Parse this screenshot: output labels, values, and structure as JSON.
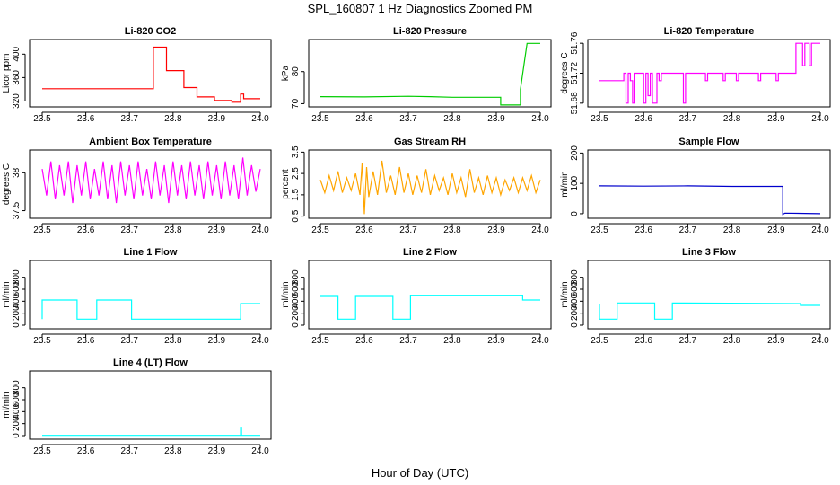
{
  "figure": {
    "title": "SPL_160807  1 Hz Diagnostics Zoomed PM",
    "xlabel": "Hour of Day (UTC)"
  },
  "chart_data": [
    {
      "type": "line",
      "title": "Li-820 CO2",
      "ylabel": "Licor ppm",
      "color": "#ff0000",
      "xlim": [
        23.5,
        24.0
      ],
      "ylim": [
        310,
        425
      ],
      "xticks": [
        "23.5",
        "23.6",
        "23.7",
        "23.8",
        "23.9",
        "24.0"
      ],
      "yticks": [
        320,
        360,
        400
      ],
      "series": [
        {
          "x": [
            23.5,
            23.755,
            23.755,
            23.785,
            23.785,
            23.825,
            23.825,
            23.855,
            23.855,
            23.895,
            23.895,
            23.935,
            23.935,
            23.955,
            23.955,
            23.962,
            23.962,
            24.0
          ],
          "y": [
            341,
            341,
            412,
            412,
            372,
            372,
            343,
            343,
            327,
            327,
            321,
            321,
            318,
            318,
            332,
            332,
            324,
            324
          ]
        }
      ]
    },
    {
      "type": "line",
      "title": "Li-820 Pressure",
      "ylabel": "kPa",
      "color": "#00cc00",
      "xlim": [
        23.5,
        24.0
      ],
      "ylim": [
        69,
        90
      ],
      "xticks": [
        "23.5",
        "23.6",
        "23.7",
        "23.8",
        "23.9",
        "24.0"
      ],
      "yticks": [
        70,
        80
      ],
      "series": [
        {
          "x": [
            23.5,
            23.6,
            23.7,
            23.75,
            23.8,
            23.855,
            23.91,
            23.91,
            23.955,
            23.955,
            23.965,
            23.97,
            24.0
          ],
          "y": [
            72.2,
            72.1,
            72.3,
            72.2,
            72.0,
            72.0,
            72.0,
            69.6,
            69.6,
            74.5,
            84.0,
            88.8,
            88.8
          ]
        }
      ]
    },
    {
      "type": "line",
      "title": "Li-820 Temperature",
      "ylabel": "degrees C",
      "color": "#ff00ff",
      "xlim": [
        23.5,
        24.0
      ],
      "ylim": [
        51.675,
        51.765
      ],
      "xticks": [
        "23.5",
        "23.6",
        "23.7",
        "23.8",
        "23.9",
        "24.0"
      ],
      "yticks": [
        51.68,
        51.72,
        51.76
      ],
      "series": [
        {
          "x": [
            23.5,
            23.555,
            23.555,
            23.56,
            23.56,
            23.565,
            23.565,
            23.57,
            23.57,
            23.575,
            23.575,
            23.58,
            23.58,
            23.6,
            23.6,
            23.605,
            23.605,
            23.61,
            23.61,
            23.615,
            23.615,
            23.62,
            23.62,
            23.63,
            23.63,
            23.635,
            23.635,
            23.64,
            23.64,
            23.69,
            23.69,
            23.695,
            23.695,
            23.74,
            23.74,
            23.745,
            23.745,
            23.78,
            23.78,
            23.785,
            23.785,
            23.81,
            23.81,
            23.815,
            23.815,
            23.86,
            23.86,
            23.865,
            23.865,
            23.9,
            23.9,
            23.905,
            23.905,
            23.945,
            23.945,
            23.96,
            23.96,
            23.965,
            23.965,
            23.975,
            23.975,
            23.98,
            23.98,
            23.99,
            23.99,
            24.0
          ],
          "y": [
            51.71,
            51.71,
            51.72,
            51.72,
            51.68,
            51.68,
            51.72,
            51.72,
            51.71,
            51.71,
            51.68,
            51.68,
            51.72,
            51.72,
            51.68,
            51.68,
            51.72,
            51.72,
            51.69,
            51.69,
            51.72,
            51.72,
            51.68,
            51.68,
            51.72,
            51.72,
            51.71,
            51.71,
            51.72,
            51.72,
            51.68,
            51.68,
            51.72,
            51.72,
            51.71,
            51.71,
            51.72,
            51.72,
            51.71,
            51.71,
            51.72,
            51.72,
            51.71,
            51.71,
            51.72,
            51.72,
            51.71,
            51.71,
            51.72,
            51.72,
            51.71,
            51.71,
            51.72,
            51.72,
            51.76,
            51.76,
            51.73,
            51.73,
            51.76,
            51.76,
            51.73,
            51.73,
            51.76,
            51.76,
            51.76,
            51.76
          ]
        }
      ]
    },
    {
      "type": "line",
      "title": "Ambient Box Temperature",
      "ylabel": "degrees C",
      "color": "#ff00ff",
      "xlim": [
        23.5,
        24.0
      ],
      "ylim": [
        37.4,
        38.3
      ],
      "xticks": [
        "23.5",
        "23.6",
        "23.7",
        "23.8",
        "23.9",
        "24.0"
      ],
      "yticks": [
        37.5,
        38.0
      ],
      "series": [
        {
          "x": [
            23.5,
            23.51,
            23.52,
            23.53,
            23.54,
            23.55,
            23.56,
            23.57,
            23.58,
            23.59,
            23.6,
            23.61,
            23.62,
            23.63,
            23.64,
            23.65,
            23.66,
            23.67,
            23.68,
            23.69,
            23.7,
            23.71,
            23.72,
            23.73,
            23.74,
            23.75,
            23.76,
            23.77,
            23.78,
            23.79,
            23.8,
            23.81,
            23.82,
            23.83,
            23.84,
            23.85,
            23.86,
            23.87,
            23.88,
            23.89,
            23.9,
            23.91,
            23.92,
            23.93,
            23.94,
            23.95,
            23.96,
            23.97,
            23.98,
            23.99,
            24.0
          ],
          "y": [
            38.05,
            37.7,
            38.15,
            37.65,
            38.1,
            37.7,
            38.15,
            37.6,
            38.1,
            37.7,
            38.15,
            37.65,
            38.05,
            37.7,
            38.15,
            37.65,
            38.1,
            37.6,
            38.15,
            37.7,
            38.1,
            37.65,
            38.15,
            37.7,
            38.05,
            37.65,
            38.15,
            37.7,
            38.1,
            37.6,
            38.15,
            37.7,
            38.1,
            37.65,
            38.15,
            37.7,
            38.1,
            37.65,
            38.15,
            37.7,
            38.1,
            37.65,
            38.15,
            37.7,
            38.1,
            37.65,
            38.2,
            37.7,
            38.1,
            37.75,
            38.05
          ]
        }
      ]
    },
    {
      "type": "line",
      "title": "Gas Stream RH",
      "ylabel": "percent",
      "color": "#ffa500",
      "xlim": [
        23.5,
        24.0
      ],
      "ylim": [
        0.4,
        3.6
      ],
      "xticks": [
        "23.5",
        "23.6",
        "23.7",
        "23.8",
        "23.9",
        "24.0"
      ],
      "yticks": [
        0.5,
        1.5,
        2.5,
        3.5
      ],
      "series": [
        {
          "x": [
            23.5,
            23.51,
            23.52,
            23.53,
            23.54,
            23.55,
            23.56,
            23.57,
            23.58,
            23.59,
            23.595,
            23.6,
            23.605,
            23.61,
            23.62,
            23.63,
            23.64,
            23.65,
            23.66,
            23.67,
            23.68,
            23.69,
            23.7,
            23.71,
            23.72,
            23.73,
            23.74,
            23.75,
            23.76,
            23.77,
            23.78,
            23.79,
            23.8,
            23.81,
            23.82,
            23.83,
            23.84,
            23.85,
            23.86,
            23.87,
            23.88,
            23.89,
            23.9,
            23.91,
            23.92,
            23.93,
            23.94,
            23.95,
            23.96,
            23.97,
            23.98,
            23.99,
            24.0
          ],
          "y": [
            2.2,
            1.6,
            2.4,
            1.7,
            2.6,
            1.6,
            2.3,
            1.7,
            2.5,
            1.5,
            3.0,
            0.6,
            2.8,
            1.4,
            2.6,
            1.5,
            3.1,
            1.6,
            2.4,
            1.5,
            2.8,
            1.6,
            2.5,
            1.5,
            2.4,
            1.6,
            2.7,
            1.5,
            2.4,
            1.7,
            2.3,
            1.5,
            2.5,
            1.6,
            2.3,
            1.4,
            2.7,
            1.6,
            2.3,
            1.5,
            2.4,
            1.6,
            2.3,
            1.5,
            2.2,
            1.7,
            2.3,
            1.6,
            2.3,
            1.7,
            2.4,
            1.6,
            2.2
          ]
        }
      ]
    },
    {
      "type": "line",
      "title": "Sample Flow",
      "ylabel": "ml/min",
      "color": "#0000cc",
      "xlim": [
        23.5,
        24.0
      ],
      "ylim": [
        -15,
        210
      ],
      "xticks": [
        "23.5",
        "23.6",
        "23.7",
        "23.8",
        "23.9",
        "24.0"
      ],
      "yticks": [
        0,
        100,
        200
      ],
      "series": [
        {
          "x": [
            23.5,
            23.6,
            23.7,
            23.8,
            23.915,
            23.915,
            23.92,
            24.0
          ],
          "y": [
            92,
            91,
            92,
            90,
            90,
            -2,
            2,
            0
          ]
        }
      ]
    },
    {
      "type": "line",
      "title": "Line 1 Flow",
      "ylabel": "ml/min",
      "color": "#00ffff",
      "xlim": [
        23.5,
        24.0
      ],
      "ylim": [
        -60,
        1080
      ],
      "xticks": [
        "23.5",
        "23.6",
        "23.7",
        "23.8",
        "23.9",
        "24.0"
      ],
      "yticks": [
        0,
        200,
        400,
        600,
        800
      ],
      "series": [
        {
          "x": [
            23.5,
            23.5,
            23.58,
            23.58,
            23.625,
            23.625,
            23.705,
            23.705,
            23.955,
            23.955,
            24.0
          ],
          "y": [
            100,
            420,
            420,
            100,
            100,
            420,
            420,
            100,
            100,
            360,
            360
          ]
        }
      ]
    },
    {
      "type": "line",
      "title": "Line 2 Flow",
      "ylabel": "ml/min",
      "color": "#00ffff",
      "xlim": [
        23.5,
        24.0
      ],
      "ylim": [
        -60,
        1080
      ],
      "xticks": [
        "23.5",
        "23.6",
        "23.7",
        "23.8",
        "23.9",
        "24.0"
      ],
      "yticks": [
        0,
        200,
        400,
        600,
        800
      ],
      "series": [
        {
          "x": [
            23.5,
            23.54,
            23.54,
            23.58,
            23.58,
            23.665,
            23.665,
            23.705,
            23.705,
            23.96,
            23.96,
            24.0
          ],
          "y": [
            480,
            480,
            100,
            100,
            480,
            480,
            100,
            100,
            490,
            490,
            420,
            420
          ]
        }
      ]
    },
    {
      "type": "line",
      "title": "Line 3 Flow",
      "ylabel": "ml/min",
      "color": "#00ffff",
      "xlim": [
        23.5,
        24.0
      ],
      "ylim": [
        -60,
        1080
      ],
      "xticks": [
        "23.5",
        "23.6",
        "23.7",
        "23.8",
        "23.9",
        "24.0"
      ],
      "yticks": [
        0,
        200,
        400,
        600,
        800
      ],
      "series": [
        {
          "x": [
            23.5,
            23.5,
            23.54,
            23.54,
            23.625,
            23.625,
            23.665,
            23.665,
            23.955,
            23.955,
            24.0
          ],
          "y": [
            360,
            100,
            100,
            370,
            370,
            100,
            100,
            370,
            360,
            330,
            330
          ]
        }
      ]
    },
    {
      "type": "line",
      "title": "Line 4 (LT) Flow",
      "ylabel": "ml/min",
      "color": "#00ffff",
      "xlim": [
        23.5,
        24.0
      ],
      "ylim": [
        -60,
        1080
      ],
      "xticks": [
        "23.5",
        "23.6",
        "23.7",
        "23.8",
        "23.9",
        "24.0"
      ],
      "yticks": [
        0,
        200,
        400,
        600,
        800
      ],
      "series": [
        {
          "x": [
            23.5,
            23.955,
            23.955,
            23.957,
            23.957,
            24.0
          ],
          "y": [
            5,
            5,
            140,
            140,
            5,
            5
          ]
        }
      ]
    }
  ]
}
